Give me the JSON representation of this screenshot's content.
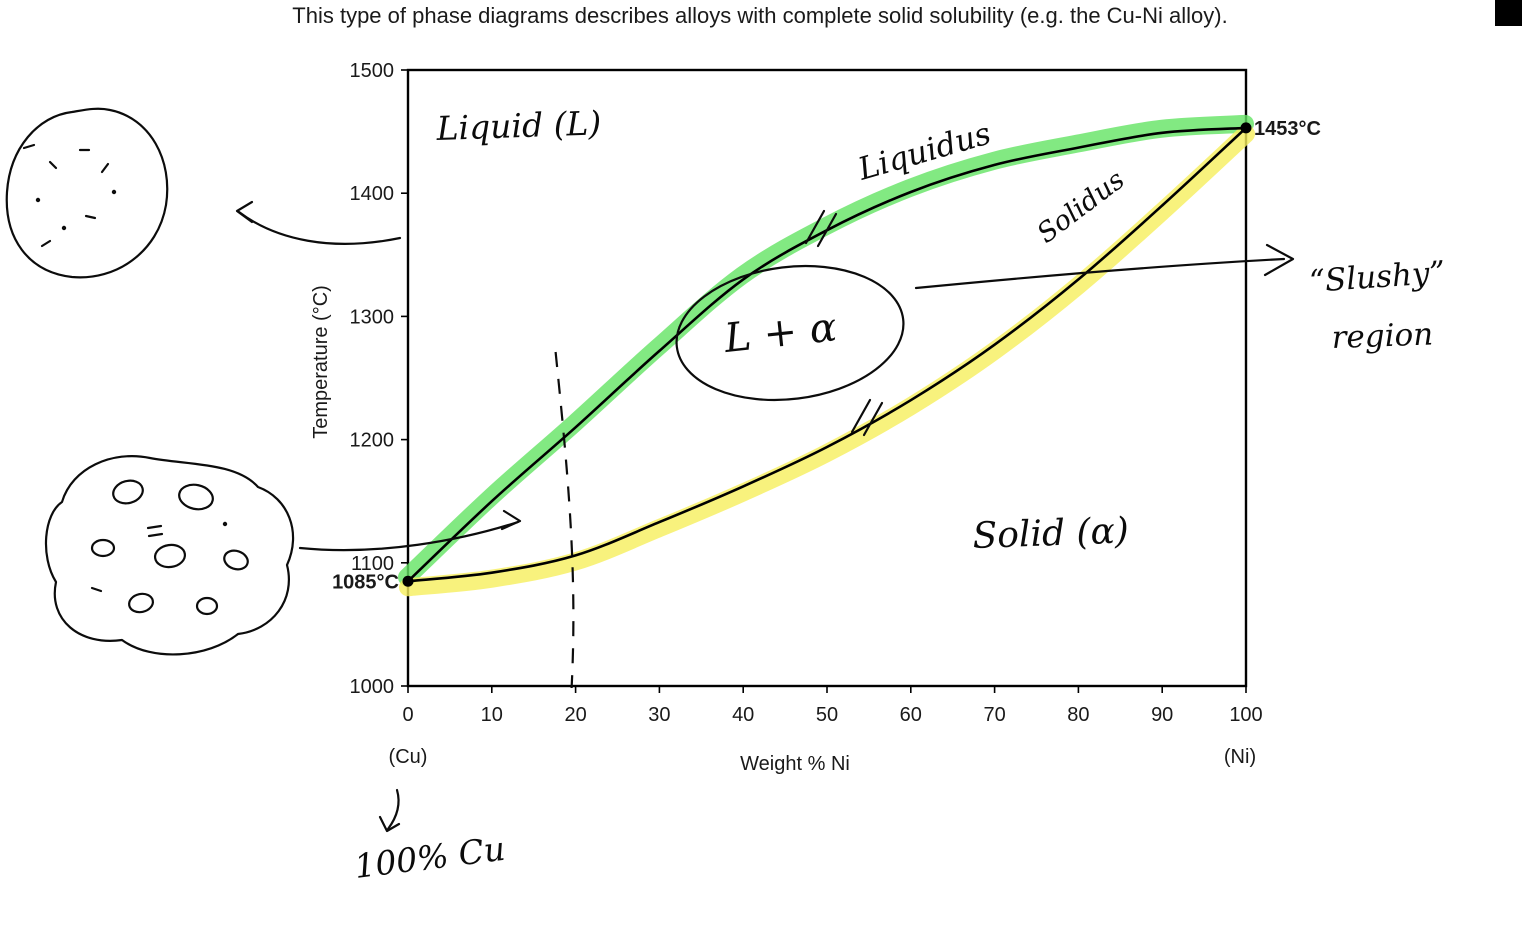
{
  "page": {
    "title": "This type of phase diagrams describes alloys with complete solid solubility (e.g. the Cu-Ni alloy)."
  },
  "chart_data": {
    "type": "line",
    "title": "",
    "xlabel": "Weight % Ni",
    "ylabel": "Temperature (°C)",
    "xlim": [
      0,
      100
    ],
    "ylim": [
      1000,
      1500
    ],
    "x_ticks": [
      0,
      10,
      20,
      30,
      40,
      50,
      60,
      70,
      80,
      90,
      100
    ],
    "y_ticks": [
      1000,
      1100,
      1200,
      1300,
      1400,
      1500
    ],
    "x_end_labels": {
      "left": "(Cu)",
      "right": "(Ni)"
    },
    "grid": false,
    "legend": false,
    "x": [
      0,
      10,
      20,
      30,
      40,
      50,
      60,
      70,
      80,
      90,
      100
    ],
    "series": [
      {
        "name": "Liquidus",
        "values": [
          1085,
          1150,
          1210,
          1272,
          1330,
          1370,
          1401,
          1423,
          1437,
          1449,
          1453
        ],
        "highlight_color": "#63e363"
      },
      {
        "name": "Solidus",
        "values": [
          1085,
          1092,
          1106,
          1133,
          1162,
          1194,
          1232,
          1277,
          1330,
          1390,
          1453
        ],
        "highlight_color": "#f6ef5c"
      }
    ],
    "points": [
      {
        "label": "1085°C",
        "x": 0,
        "y": 1085
      },
      {
        "label": "1453°C",
        "x": 100,
        "y": 1453
      }
    ],
    "dashed_guide_x": 20
  },
  "annotations": {
    "liquid": "Liquid (L)",
    "liquidus": "Liquidus",
    "solidus": "Solidus",
    "two_phase": "L + α",
    "solid": "Solid (α)",
    "slushy_line1": "“Slushy”",
    "slushy_line2": "region",
    "pure_cu": "100% Cu"
  }
}
